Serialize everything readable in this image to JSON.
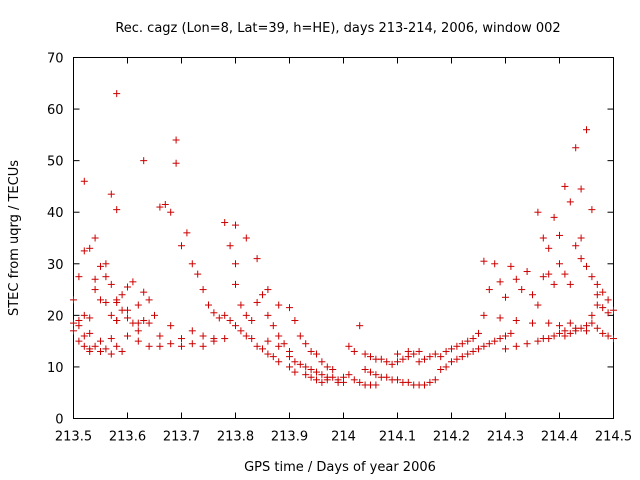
{
  "chart_data": {
    "type": "scatter",
    "title": "Rec. cagz (Lon=8, Lat=39, h=HE), days 213-214, 2006, window 002",
    "xlabel": "GPS time / Days of year 2006",
    "ylabel": "STEC from uqrg / TECUs",
    "xlim": [
      213.5,
      214.5
    ],
    "ylim": [
      0,
      70
    ],
    "x_ticks": [
      213.5,
      213.6,
      213.7,
      213.8,
      213.9,
      214,
      214.1,
      214.2,
      214.3,
      214.4,
      214.5
    ],
    "x_tick_labels": [
      "213.5",
      "213.6",
      "213.7",
      "213.8",
      "213.9",
      "214",
      "214.1",
      "214.2",
      "214.3",
      "214.4",
      "214.5"
    ],
    "y_ticks": [
      0,
      10,
      20,
      30,
      40,
      50,
      60,
      70
    ],
    "y_tick_labels": [
      "0",
      "10",
      "20",
      "30",
      "40",
      "50",
      "60",
      "70"
    ],
    "grid": false,
    "marker": "plus",
    "color": "#cc0000",
    "x": [
      213.5,
      213.5,
      213.51,
      213.51,
      213.52,
      213.52,
      213.53,
      213.53,
      213.54,
      213.55,
      213.56,
      213.57,
      213.58,
      213.59,
      213.5,
      213.51,
      213.52,
      213.53,
      213.54,
      213.55,
      213.56,
      213.57,
      213.58,
      213.59,
      213.6,
      213.61,
      213.62,
      213.63,
      213.52,
      213.53,
      213.54,
      213.55,
      213.56,
      213.57,
      213.58,
      213.59,
      213.6,
      213.61,
      213.62,
      213.63,
      213.64,
      213.65,
      213.52,
      213.54,
      213.56,
      213.58,
      213.6,
      213.62,
      213.64,
      213.66,
      213.68,
      213.7,
      213.72,
      213.74,
      213.76,
      213.78,
      213.51,
      213.53,
      213.55,
      213.57,
      213.58,
      213.6,
      213.62,
      213.64,
      213.66,
      213.68,
      213.7,
      213.72,
      213.74,
      213.76,
      213.57,
      213.58,
      213.58,
      213.63,
      213.66,
      213.67,
      213.68,
      213.69,
      213.69,
      213.7,
      213.71,
      213.72,
      213.73,
      213.74,
      213.75,
      213.76,
      213.77,
      213.78,
      213.79,
      213.8,
      213.81,
      213.82,
      213.83,
      213.84,
      213.85,
      213.86,
      213.87,
      213.88,
      213.78,
      213.79,
      213.8,
      213.8,
      213.81,
      213.82,
      213.83,
      213.84,
      213.85,
      213.86,
      213.87,
      213.88,
      213.89,
      213.9,
      213.8,
      213.82,
      213.84,
      213.86,
      213.88,
      213.9,
      213.91,
      213.92,
      213.93,
      213.94,
      213.95,
      213.96,
      213.97,
      213.98,
      213.86,
      213.88,
      213.9,
      213.91,
      213.92,
      213.93,
      213.94,
      213.95,
      213.96,
      213.97,
      213.98,
      213.99,
      214.0,
      214.01,
      213.9,
      213.91,
      213.93,
      213.94,
      213.95,
      213.96,
      213.97,
      213.99,
      214.0,
      214.02,
      214.03,
      214.04,
      214.05,
      214.06,
      214.01,
      214.02,
      214.03,
      214.04,
      214.05,
      214.06,
      214.07,
      214.08,
      214.09,
      214.1,
      214.11,
      214.12,
      214.13,
      214.14,
      214.04,
      214.05,
      214.06,
      214.07,
      214.08,
      214.09,
      214.1,
      214.11,
      214.12,
      214.13,
      214.14,
      214.15,
      214.16,
      214.17,
      214.1,
      214.12,
      214.14,
      214.15,
      214.16,
      214.17,
      214.18,
      214.19,
      214.2,
      214.21,
      214.22,
      214.23,
      214.24,
      214.25,
      214.18,
      214.19,
      214.2,
      214.21,
      214.22,
      214.23,
      214.24,
      214.25,
      214.26,
      214.27,
      214.28,
      214.29,
      214.3,
      214.31,
      214.26,
      214.27,
      214.28,
      214.29,
      214.3,
      214.31,
      214.32,
      214.33,
      214.34,
      214.35,
      214.36,
      214.37,
      214.38,
      214.39,
      214.3,
      214.32,
      214.34,
      214.36,
      214.37,
      214.38,
      214.39,
      214.4,
      214.41,
      214.42,
      214.43,
      214.44,
      214.45,
      214.46,
      214.36,
      214.37,
      214.38,
      214.39,
      214.4,
      214.41,
      214.42,
      214.43,
      214.44,
      214.45,
      214.46,
      214.47,
      214.48,
      214.49,
      214.4,
      214.41,
      214.42,
      214.43,
      214.44,
      214.45,
      214.46,
      214.47,
      214.48,
      214.49,
      214.5,
      214.44,
      214.46,
      214.47,
      214.26,
      214.29,
      214.32,
      214.35,
      214.38,
      214.4,
      214.42,
      214.43,
      214.45,
      214.47,
      214.48,
      214.49,
      214.5,
      214.41
    ],
    "y": [
      17.0,
      18.5,
      15.0,
      19.0,
      14.0,
      16.0,
      13.5,
      13.0,
      14.0,
      13.0,
      13.5,
      12.5,
      14.0,
      13.0,
      23.0,
      27.5,
      20.0,
      19.5,
      25.0,
      23.0,
      22.5,
      20.0,
      19.0,
      21.0,
      19.5,
      18.5,
      18.5,
      19.0,
      32.5,
      33.0,
      35.0,
      29.5,
      30.0,
      26.0,
      22.5,
      24.0,
      25.5,
      26.5,
      22.0,
      24.5,
      23.0,
      20.0,
      46.0,
      27.0,
      27.5,
      23.0,
      16.0,
      15.0,
      14.0,
      14.0,
      14.5,
      14.0,
      14.5,
      14.0,
      15.0,
      15.5,
      18.0,
      16.5,
      15.0,
      15.5,
      19.0,
      21.0,
      17.0,
      18.5,
      16.0,
      18.0,
      15.5,
      17.0,
      16.0,
      15.5,
      43.5,
      40.5,
      63.0,
      50.0,
      41.0,
      41.5,
      40.0,
      49.5,
      54.0,
      33.5,
      36.0,
      30.0,
      28.0,
      25.0,
      22.0,
      20.5,
      19.5,
      20.0,
      19.0,
      18.0,
      17.0,
      16.0,
      15.5,
      14.0,
      13.5,
      12.5,
      12.0,
      11.0,
      38.0,
      33.5,
      37.5,
      26.0,
      22.0,
      20.0,
      19.0,
      22.5,
      24.0,
      20.0,
      18.0,
      16.0,
      14.5,
      13.0,
      30.0,
      35.0,
      31.0,
      25.0,
      22.0,
      21.5,
      19.0,
      16.0,
      14.5,
      13.0,
      12.5,
      11.0,
      10.0,
      9.5,
      15.0,
      14.0,
      12.0,
      11.0,
      10.5,
      10.0,
      9.5,
      9.0,
      8.5,
      8.0,
      8.0,
      7.5,
      8.0,
      8.5,
      10.0,
      9.0,
      8.5,
      8.0,
      7.5,
      7.0,
      7.5,
      7.0,
      7.0,
      7.5,
      7.0,
      6.5,
      6.5,
      6.5,
      14.0,
      13.0,
      18.0,
      12.5,
      12.0,
      11.5,
      11.5,
      11.0,
      10.5,
      11.0,
      11.5,
      12.0,
      12.5,
      13.0,
      9.5,
      9.0,
      8.5,
      8.0,
      8.0,
      7.5,
      7.5,
      7.0,
      7.0,
      6.5,
      6.5,
      6.5,
      7.0,
      7.5,
      12.5,
      13.0,
      11.0,
      11.5,
      12.0,
      12.5,
      12.0,
      13.0,
      13.5,
      14.0,
      14.5,
      15.0,
      15.5,
      16.5,
      9.5,
      10.0,
      11.0,
      11.5,
      12.0,
      12.5,
      13.0,
      13.5,
      14.0,
      14.5,
      15.0,
      15.5,
      16.0,
      16.5,
      30.5,
      25.0,
      30.0,
      26.5,
      23.5,
      29.5,
      27.0,
      25.0,
      28.5,
      24.0,
      22.0,
      27.5,
      28.0,
      26.0,
      13.5,
      14.0,
      14.5,
      15.0,
      15.5,
      15.5,
      16.0,
      16.5,
      16.0,
      16.5,
      17.0,
      17.5,
      18.0,
      18.5,
      40.0,
      35.0,
      33.0,
      39.0,
      35.5,
      45.0,
      42.0,
      52.5,
      44.5,
      56.0,
      20.0,
      22.0,
      21.5,
      20.5,
      30.0,
      28.0,
      26.0,
      33.5,
      31.0,
      29.5,
      27.5,
      26.0,
      24.5,
      23.0,
      21.0,
      35.0,
      40.5,
      24.0,
      20.0,
      19.5,
      19.0,
      18.5,
      18.5,
      18.0,
      18.5,
      17.5,
      17.0,
      17.5,
      16.5,
      16.0,
      15.5,
      17.0
    ]
  }
}
